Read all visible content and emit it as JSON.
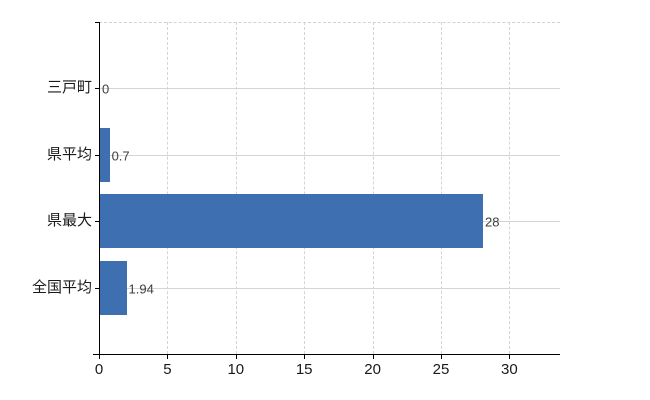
{
  "chart_data": {
    "type": "bar",
    "orientation": "horizontal",
    "title": "",
    "xlabel": "",
    "ylabel": "",
    "categories": [
      "三戸町",
      "県平均",
      "県最大",
      "全国平均"
    ],
    "values": [
      0,
      0.7,
      28,
      1.94
    ],
    "value_labels": [
      "0",
      "0.7",
      "28",
      "1.94"
    ],
    "xlim": [
      0,
      33.7
    ],
    "xticks": [
      0,
      5,
      10,
      15,
      20,
      25,
      30
    ],
    "xtick_labels": [
      "0",
      "5",
      "10",
      "15",
      "20",
      "25",
      "30"
    ],
    "grid": true,
    "legend": false,
    "colors": {
      "bar": "#3e6fb0",
      "h_gridline": "#d0d8d0",
      "v_gridline": "#d7d2d7",
      "top_border": "#d2d2d2",
      "axis": "#000000",
      "tick_text": "#1a1a1a",
      "value_text": "#3d3d3d",
      "background": "#ffffff"
    }
  }
}
